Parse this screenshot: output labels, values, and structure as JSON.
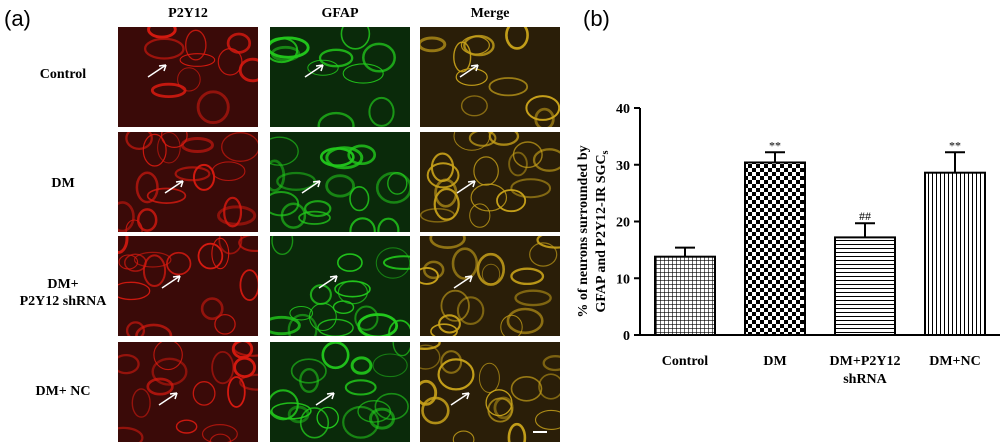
{
  "panel_a": {
    "letter": "(a)",
    "columns": [
      "P2Y12",
      "GFAP",
      "Merge"
    ],
    "rows": [
      {
        "label_lines": [
          "Control"
        ]
      },
      {
        "label_lines": [
          "DM"
        ]
      },
      {
        "label_lines": [
          "DM+",
          "P2Y12 shRNA"
        ]
      },
      {
        "label_lines": [
          "DM+ NC"
        ]
      }
    ],
    "colors": {
      "p2y12": "#d81a10",
      "gfap": "#22c81c",
      "merge": "#c8a21a"
    }
  },
  "panel_b": {
    "letter": "(b)"
  },
  "chart_data": {
    "type": "bar",
    "categories": [
      "Control",
      "DM",
      "DM+P2Y12 shRNA",
      "DM+NC"
    ],
    "category_label_lines": [
      [
        "Control"
      ],
      [
        "DM"
      ],
      [
        "DM+P2Y12",
        "shRNA"
      ],
      [
        "DM+NC"
      ]
    ],
    "values": [
      13.8,
      30.4,
      17.2,
      28.6
    ],
    "errors": [
      1.6,
      1.8,
      2.5,
      3.6
    ],
    "significance": [
      "",
      "**",
      "##",
      "**"
    ],
    "patterns": [
      "grid",
      "checker",
      "hlines",
      "vlines"
    ],
    "ylabel_lines": [
      "% of neurons surrounded by",
      "GFAP and P2Y12-IR SGC"
    ],
    "ylabel_subscript": "s",
    "ylim": [
      0,
      40
    ],
    "yticks": [
      "0",
      "10",
      "20",
      "30",
      "40"
    ],
    "xlabel": "",
    "title": ""
  }
}
